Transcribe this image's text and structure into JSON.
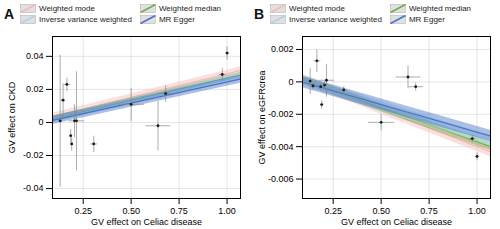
{
  "chart_data": [
    {
      "type": "scatter",
      "title": "A",
      "x_label": "GV effect on Celiac disease",
      "y_label": "GV effect on CKD",
      "xlim": [
        0.09,
        1.07
      ],
      "ylim": [
        -0.046,
        0.052
      ],
      "xticks": [
        0.25,
        {
          "value": 0.5,
          "label": "0.50"
        },
        0.75,
        {
          "value": 1,
          "label": "1.00"
        }
      ],
      "yticks": [
        -0.04,
        -0.02,
        0,
        0.02,
        0.04
      ],
      "grid": true,
      "legend": "top",
      "points": {
        "color": "#1a1a1a",
        "error_color": "#888888",
        "x": [
          0.13,
          0.145,
          0.165,
          0.185,
          0.19,
          0.205,
          0.215,
          0.305,
          0.5,
          0.64,
          0.68,
          0.975,
          1.0
        ],
        "y": [
          0.001,
          0.0135,
          0.023,
          -0.008,
          -0.013,
          0.001,
          0.001,
          -0.013,
          0.011,
          -0.002,
          0.0175,
          0.029,
          0.042
        ],
        "xerr": [
          0.01,
          0.01,
          0.018,
          0.008,
          0.008,
          0.008,
          0.04,
          0.018,
          0.068,
          0.065,
          0.038,
          0.018,
          0.01
        ],
        "yerr": [
          0.04,
          0.01,
          0.004,
          0.004,
          0.004,
          0.01,
          0.03,
          0.005,
          0.01,
          0.015,
          0.005,
          0.004,
          0.004
        ]
      },
      "series": [
        {
          "name": "Weighted mode",
          "color": "#f4b8b5",
          "type": "line",
          "x": [
            0.09,
            1.07
          ],
          "values": [
            0.003565,
            0.031495
          ],
          "lower": [
            0.001565,
            0.029495
          ],
          "upper": [
            0.005565,
            0.033495
          ]
        },
        {
          "name": "Weighted median",
          "color": "#70ad47",
          "type": "line",
          "x": [
            0.09,
            1.07
          ],
          "values": [
            0.00223,
            0.02869
          ],
          "lower": [
            0.00073,
            0.02719
          ],
          "upper": [
            0.00373,
            0.03019
          ]
        },
        {
          "name": "Inverse variance weighted",
          "color": "#aad4e8",
          "type": "line",
          "x": [
            0.09,
            1.07
          ],
          "values": [
            0.00163,
            0.02809
          ],
          "lower": [
            -0.00037,
            0.02609
          ],
          "upper": [
            0.00363,
            0.03009
          ]
        },
        {
          "name": "MR Egger",
          "color": "#4472c4",
          "type": "line",
          "x": [
            0.09,
            1.07
          ],
          "values": [
            0.001295,
            0.026285
          ],
          "lower": [
            -0.001205,
            0.023785
          ],
          "upper": [
            0.003795,
            0.028785
          ]
        }
      ]
    },
    {
      "type": "scatter",
      "title": "B",
      "x_label": "GV effect on Celiac disease",
      "y_label": "GV effect on eGFRcrea",
      "xlim": [
        0.09,
        1.07
      ],
      "ylim": [
        -0.0072,
        0.0028
      ],
      "xticks": [
        0.25,
        {
          "value": 0.5,
          "label": "0.50"
        },
        0.75,
        {
          "value": 1,
          "label": "1.00"
        }
      ],
      "yticks": [
        -0.006,
        -0.004,
        -0.002,
        0,
        0.002
      ],
      "grid": true,
      "legend": "top",
      "points": {
        "color": "#1a1a1a",
        "error_color": "#888888",
        "x": [
          0.13,
          0.145,
          0.165,
          0.185,
          0.19,
          0.205,
          0.215,
          0.305,
          0.5,
          0.64,
          0.68,
          0.975,
          1.0
        ],
        "y": [
          5e-05,
          -0.00025,
          0.0013,
          -0.0003,
          -0.0014,
          -0.0002,
          0.0001,
          -0.0005,
          -0.0025,
          0.0003,
          -0.0003,
          -0.0035,
          -0.0046
        ],
        "xerr": [
          0.01,
          0.01,
          0.018,
          0.008,
          0.008,
          0.008,
          0.04,
          0.018,
          0.068,
          0.065,
          0.038,
          0.018,
          0.01
        ],
        "yerr": [
          0.0008,
          0.00025,
          0.0007,
          0.00025,
          0.00025,
          0.00025,
          0.001,
          0.00025,
          0.0005,
          0.0007,
          0.00025,
          0.00025,
          0.00025
        ]
      },
      "series": [
        {
          "name": "Weighted mode",
          "color": "#f4b8b5",
          "type": "line",
          "x": [
            0.09,
            1.07
          ],
          "values": [
            0.000186,
            -0.004322
          ],
          "lower": [
            -0.000114,
            -0.004622
          ],
          "upper": [
            0.000486,
            -0.004022
          ]
        },
        {
          "name": "Weighted median",
          "color": "#70ad47",
          "type": "line",
          "x": [
            0.09,
            1.07
          ],
          "values": [
            0.000122,
            -0.003994
          ],
          "lower": [
            -0.000128,
            -0.004244
          ],
          "upper": [
            0.000372,
            -0.003744
          ]
        },
        {
          "name": "Inverse variance weighted",
          "color": "#aad4e8",
          "type": "line",
          "x": [
            0.09,
            1.07
          ],
          "values": [
            5.8e-05,
            -0.003666
          ],
          "lower": [
            -0.000242,
            -0.003966
          ],
          "upper": [
            0.000358,
            -0.003366
          ]
        },
        {
          "name": "MR Egger",
          "color": "#4472c4",
          "type": "line",
          "x": [
            0.09,
            1.07
          ],
          "values": [
            -6e-06,
            -0.003338
          ],
          "lower": [
            -0.000356,
            -0.003688
          ],
          "upper": [
            0.000344,
            -0.002988
          ]
        }
      ]
    }
  ]
}
